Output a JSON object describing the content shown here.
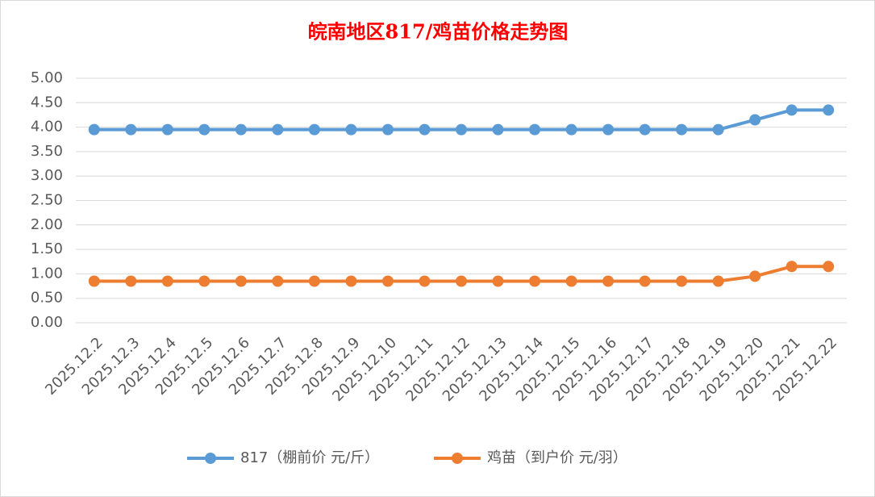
{
  "chart_data": {
    "type": "line",
    "title": "皖南地区817/鸡苗价格走势图",
    "categories": [
      "2025.12.2",
      "2025.12.3",
      "2025.12.4",
      "2025.12.5",
      "2025.12.6",
      "2025.12.7",
      "2025.12.8",
      "2025.12.9",
      "2025.12.10",
      "2025.12.11",
      "2025.12.12",
      "2025.12.13",
      "2025.12.14",
      "2025.12.15",
      "2025.12.16",
      "2025.12.17",
      "2025.12.18",
      "2025.12.19",
      "2025.12.20",
      "2025.12.21",
      "2025.12.22"
    ],
    "series": [
      {
        "name": "817（棚前价 元/斤）",
        "color": "#5b9bd5",
        "values": [
          3.95,
          3.95,
          3.95,
          3.95,
          3.95,
          3.95,
          3.95,
          3.95,
          3.95,
          3.95,
          3.95,
          3.95,
          3.95,
          3.95,
          3.95,
          3.95,
          3.95,
          3.95,
          4.15,
          4.35,
          4.35
        ]
      },
      {
        "name": "鸡苗（到户价 元/羽）",
        "color": "#ed7d31",
        "values": [
          0.85,
          0.85,
          0.85,
          0.85,
          0.85,
          0.85,
          0.85,
          0.85,
          0.85,
          0.85,
          0.85,
          0.85,
          0.85,
          0.85,
          0.85,
          0.85,
          0.85,
          0.85,
          0.95,
          1.15,
          1.15
        ]
      }
    ],
    "ylim": [
      0,
      5
    ],
    "yticks": [
      {
        "value": 0,
        "label": "0.00"
      },
      {
        "value": 0.5,
        "label": "0.50"
      },
      {
        "value": 1,
        "label": "1.00"
      },
      {
        "value": 1.5,
        "label": "1.50"
      },
      {
        "value": 2,
        "label": "2.00"
      },
      {
        "value": 2.5,
        "label": "2.50"
      },
      {
        "value": 3,
        "label": "3.00"
      },
      {
        "value": 3.5,
        "label": "3.50"
      },
      {
        "value": 4,
        "label": "4.00"
      },
      {
        "value": 4.5,
        "label": "4.50"
      },
      {
        "value": 5,
        "label": "5.00"
      }
    ],
    "grid": true
  }
}
